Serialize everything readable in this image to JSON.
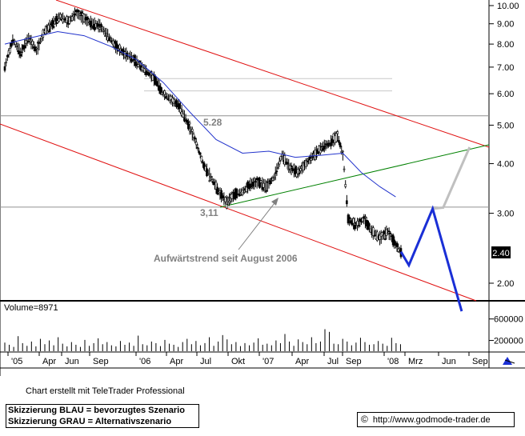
{
  "chart_data": {
    "type": "candlestick",
    "price_axis": {
      "scale": "log",
      "ticks": [
        "10.00",
        "9.00",
        "8.00",
        "7.00",
        "6.00",
        "5.00",
        "4.00",
        "3.00",
        "2.00"
      ],
      "tick_values": [
        10,
        9,
        8,
        7,
        6,
        5,
        4,
        3,
        2
      ],
      "last_price_label": "2.40",
      "last_price": 2.4
    },
    "volume_axis": {
      "ticks": [
        "600000",
        "200000"
      ],
      "tick_values": [
        600000,
        200000
      ],
      "label": "Volume=8971"
    },
    "time_axis": {
      "labels": [
        "'05",
        "Apr",
        "Jun",
        "Sep",
        "'06",
        "Apr",
        "Jul",
        "Okt",
        "'07",
        "Apr",
        "Jul",
        "Sep",
        "'08",
        "Mrz",
        "Jun",
        "Sep"
      ]
    },
    "annotations": {
      "resistance": "5.28",
      "support": "3,11",
      "trend_text": "Aufwärtstrend seit August 2006"
    },
    "levels": {
      "resistance": 5.28,
      "support": 3.11,
      "fib_lines": [
        6.55,
        6.1
      ]
    },
    "price_series": [
      {
        "t": 0,
        "v": 7.0
      },
      {
        "t": 3,
        "v": 8.2
      },
      {
        "t": 6,
        "v": 7.6
      },
      {
        "t": 9,
        "v": 8.3
      },
      {
        "t": 12,
        "v": 7.7
      },
      {
        "t": 15,
        "v": 8.6
      },
      {
        "t": 18,
        "v": 9.0
      },
      {
        "t": 21,
        "v": 9.4
      },
      {
        "t": 24,
        "v": 9.1
      },
      {
        "t": 27,
        "v": 9.6
      },
      {
        "t": 30,
        "v": 9.3
      },
      {
        "t": 33,
        "v": 9.0
      },
      {
        "t": 36,
        "v": 8.9
      },
      {
        "t": 39,
        "v": 8.4
      },
      {
        "t": 42,
        "v": 7.9
      },
      {
        "t": 45,
        "v": 7.6
      },
      {
        "t": 48,
        "v": 7.4
      },
      {
        "t": 51,
        "v": 7.1
      },
      {
        "t": 54,
        "v": 6.8
      },
      {
        "t": 57,
        "v": 6.5
      },
      {
        "t": 60,
        "v": 6.0
      },
      {
        "t": 63,
        "v": 5.8
      },
      {
        "t": 66,
        "v": 5.6
      },
      {
        "t": 69,
        "v": 5.1
      },
      {
        "t": 72,
        "v": 4.6
      },
      {
        "t": 75,
        "v": 4.0
      },
      {
        "t": 78,
        "v": 3.7
      },
      {
        "t": 81,
        "v": 3.4
      },
      {
        "t": 84,
        "v": 3.2
      },
      {
        "t": 87,
        "v": 3.35
      },
      {
        "t": 90,
        "v": 3.4
      },
      {
        "t": 93,
        "v": 3.55
      },
      {
        "t": 96,
        "v": 3.6
      },
      {
        "t": 99,
        "v": 3.5
      },
      {
        "t": 102,
        "v": 3.7
      },
      {
        "t": 105,
        "v": 4.2
      },
      {
        "t": 108,
        "v": 3.9
      },
      {
        "t": 111,
        "v": 3.8
      },
      {
        "t": 114,
        "v": 4.0
      },
      {
        "t": 117,
        "v": 4.2
      },
      {
        "t": 120,
        "v": 4.4
      },
      {
        "t": 123,
        "v": 4.5
      },
      {
        "t": 126,
        "v": 4.7
      },
      {
        "t": 128,
        "v": 4.2
      },
      {
        "t": 130,
        "v": 2.9
      },
      {
        "t": 133,
        "v": 2.8
      },
      {
        "t": 136,
        "v": 2.9
      },
      {
        "t": 139,
        "v": 2.7
      },
      {
        "t": 142,
        "v": 2.6
      },
      {
        "t": 145,
        "v": 2.7
      },
      {
        "t": 148,
        "v": 2.5
      },
      {
        "t": 150,
        "v": 2.4
      }
    ],
    "moving_average": [
      {
        "t": 0,
        "v": 8.0
      },
      {
        "t": 10,
        "v": 8.3
      },
      {
        "t": 20,
        "v": 8.6
      },
      {
        "t": 30,
        "v": 8.4
      },
      {
        "t": 40,
        "v": 7.9
      },
      {
        "t": 50,
        "v": 7.3
      },
      {
        "t": 60,
        "v": 6.4
      },
      {
        "t": 70,
        "v": 5.4
      },
      {
        "t": 80,
        "v": 4.6
      },
      {
        "t": 90,
        "v": 4.25
      },
      {
        "t": 100,
        "v": 4.3
      },
      {
        "t": 110,
        "v": 4.15
      },
      {
        "t": 120,
        "v": 4.2
      },
      {
        "t": 128,
        "v": 4.25
      },
      {
        "t": 135,
        "v": 3.8
      },
      {
        "t": 142,
        "v": 3.5
      },
      {
        "t": 148,
        "v": 3.3
      }
    ],
    "scenario_blue": [
      {
        "t": 150,
        "v": 2.4
      },
      {
        "t": 153,
        "v": 2.22
      },
      {
        "t": 162,
        "v": 3.08
      },
      {
        "t": 173,
        "v": 1.7
      }
    ],
    "scenario_grey": [
      {
        "t": 162,
        "v": 3.08
      },
      {
        "t": 166,
        "v": 3.1
      },
      {
        "t": 176,
        "v": 4.4
      }
    ],
    "volume": [
      160000,
      120000,
      80000,
      280000,
      150000,
      100000,
      180000,
      90000,
      230000,
      130000,
      200000,
      110000,
      260000,
      140000,
      90000,
      170000,
      120000,
      80000,
      210000,
      100000,
      150000,
      240000,
      130000,
      170000,
      110000,
      90000,
      190000,
      120000,
      160000,
      100000,
      290000,
      130000,
      110000,
      180000,
      150000,
      95000,
      210000,
      140000,
      120000,
      80000,
      170000,
      230000,
      130000,
      190000,
      110000,
      150000,
      260000,
      100000,
      180000,
      300000,
      220000,
      130000,
      170000,
      95000,
      150000,
      110000,
      160000,
      240000,
      120000,
      140000,
      110000,
      200000,
      150000,
      320000,
      180000,
      100000,
      220000,
      170000,
      130000,
      260000,
      150000,
      180000,
      410000,
      360000,
      140000,
      130000,
      230000,
      180000,
      110000,
      160000,
      250000,
      170000,
      120000,
      130000,
      190000,
      140000,
      100000,
      250000,
      150000,
      130000
    ]
  },
  "texts": {
    "credit": "Chart erstellt mit TeleTrader Professional",
    "legend_blue": "Skizzierung BLAU = bevorzugtes Szenario",
    "legend_grey": "Skizzierung GRAU = Alternativszenario",
    "copyright": "©",
    "url": "http://www.godmode-trader.de"
  },
  "colors": {
    "channel": "#e01010",
    "trend": "#008000",
    "ma": "#2233cc",
    "scenario_blue": "#1a2fd6",
    "scenario_grey": "#c0c0c0",
    "grid": "#909090"
  }
}
